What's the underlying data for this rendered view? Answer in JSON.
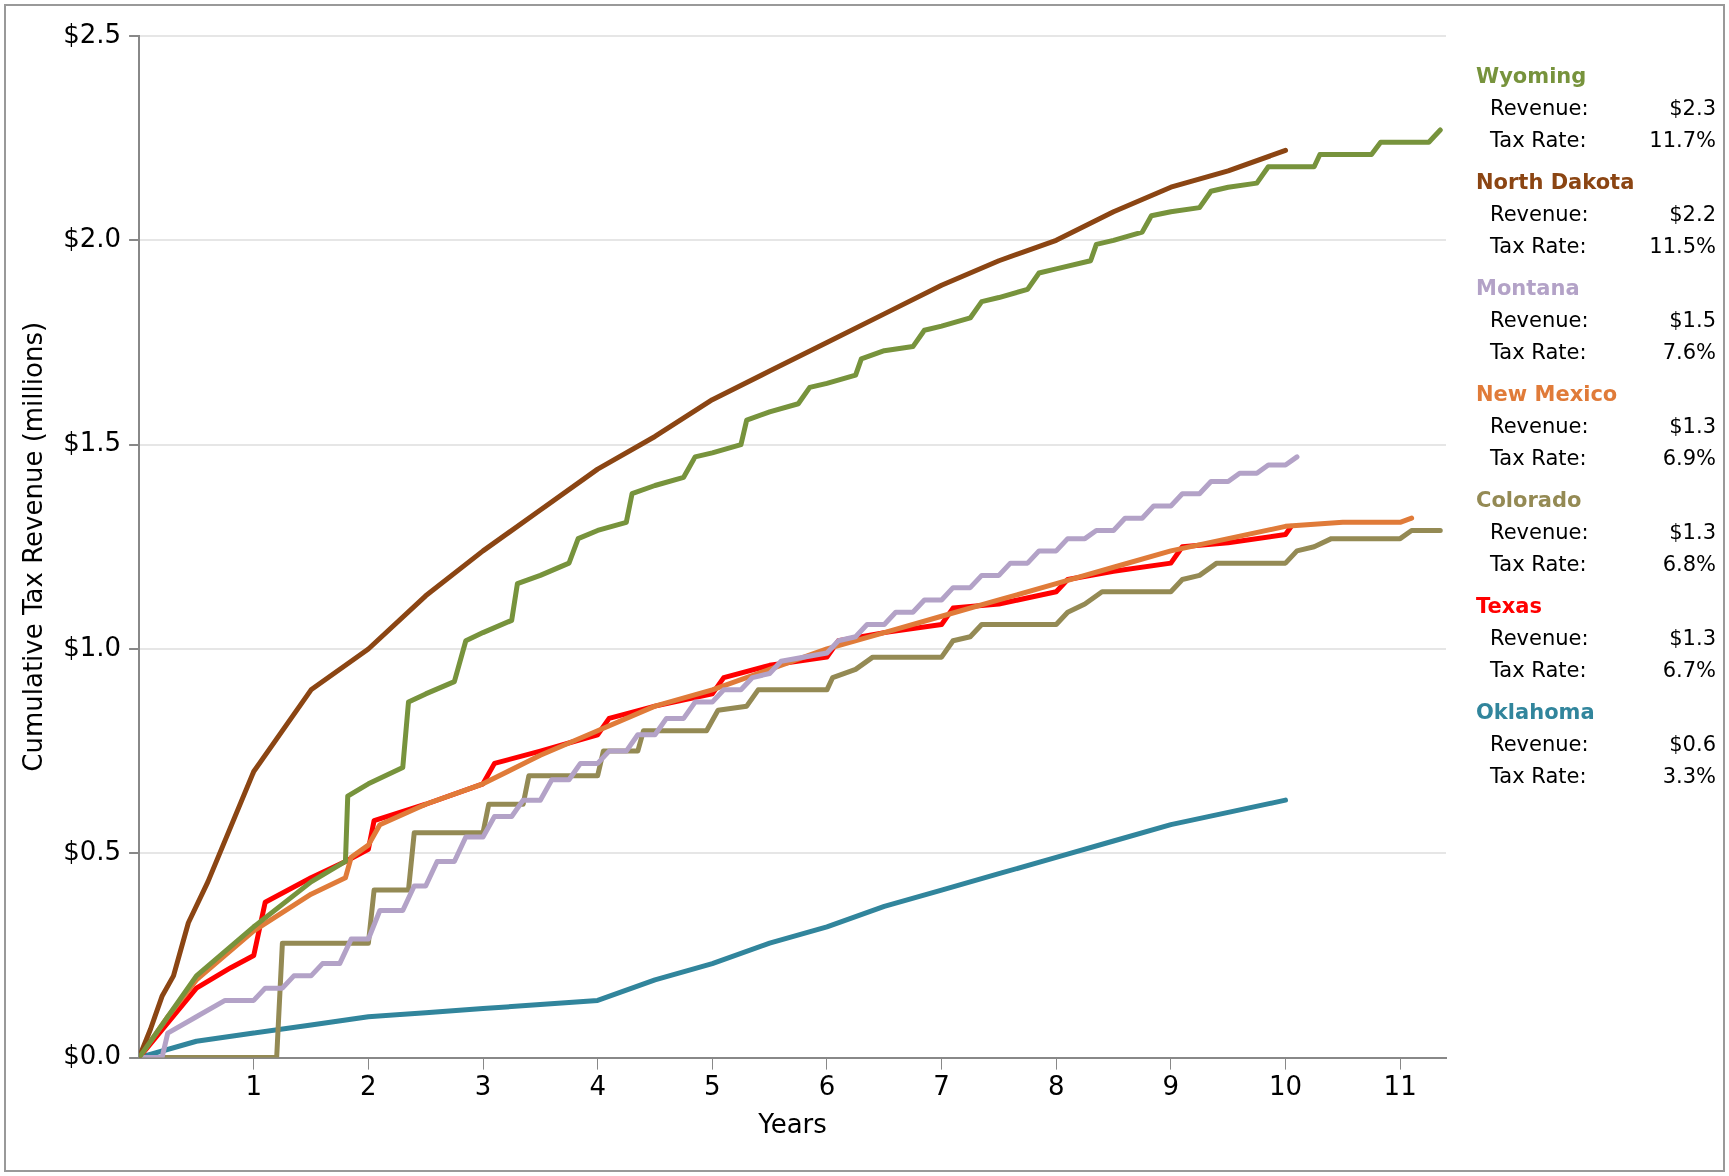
{
  "chart_data": {
    "type": "line",
    "xlabel": "Years",
    "ylabel": "Cumulative Tax Revenue (millions)",
    "xlim": [
      0,
      11.4
    ],
    "xticks": [
      1,
      2,
      3,
      4,
      5,
      6,
      7,
      8,
      9,
      10,
      11
    ],
    "ylim": [
      0,
      2.5
    ],
    "yticks": [
      {
        "value": 0,
        "label": "$0.0"
      },
      {
        "value": 0.5,
        "label": "$0.5"
      },
      {
        "value": 1,
        "label": "$1.0"
      },
      {
        "value": 1.5,
        "label": "$1.5"
      },
      {
        "value": 2,
        "label": "$2.0"
      },
      {
        "value": 2.5,
        "label": "$2.5"
      }
    ],
    "grid": "y",
    "legend": "right",
    "marker": "none",
    "line_style": "solid",
    "series": [
      {
        "name": "Wyoming",
        "color": "#77933c",
        "x": [
          0,
          0.5,
          1,
          1.5,
          1.8,
          1.82,
          2,
          2.3,
          2.35,
          2.5,
          2.75,
          2.85,
          3,
          3.25,
          3.3,
          3.5,
          3.75,
          3.83,
          4,
          4.25,
          4.3,
          4.5,
          4.75,
          4.85,
          5,
          5.25,
          5.3,
          5.5,
          5.75,
          5.85,
          6,
          6.25,
          6.3,
          6.5,
          6.75,
          6.85,
          7,
          7.25,
          7.35,
          7.5,
          7.75,
          7.85,
          8,
          8.3,
          8.35,
          8.5,
          8.75,
          8.83,
          9,
          9.25,
          9.35,
          9.5,
          9.75,
          9.85,
          10,
          10.25,
          10.3,
          10.75,
          10.83,
          11.25,
          11.35
        ],
        "values": [
          0,
          0.2,
          0.32,
          0.43,
          0.48,
          0.64,
          0.67,
          0.71,
          0.87,
          0.89,
          0.92,
          1.02,
          1.04,
          1.07,
          1.16,
          1.18,
          1.21,
          1.27,
          1.29,
          1.31,
          1.38,
          1.4,
          1.42,
          1.47,
          1.48,
          1.5,
          1.56,
          1.58,
          1.6,
          1.64,
          1.65,
          1.67,
          1.71,
          1.73,
          1.74,
          1.78,
          1.79,
          1.81,
          1.85,
          1.86,
          1.88,
          1.92,
          1.93,
          1.95,
          1.99,
          2.0,
          2.02,
          2.06,
          2.07,
          2.08,
          2.12,
          2.13,
          2.14,
          2.18,
          2.18,
          2.18,
          2.21,
          2.21,
          2.24,
          2.24,
          2.27
        ]
      },
      {
        "name": "North Dakota",
        "color": "#8b4513",
        "x": [
          0,
          0.1,
          0.2,
          0.3,
          0.43,
          0.6,
          1,
          1.5,
          2,
          2.5,
          3,
          3.5,
          4,
          4.5,
          5,
          5.5,
          6,
          6.5,
          7,
          7.5,
          8,
          8.5,
          9,
          9.5,
          10
        ],
        "values": [
          0,
          0.07,
          0.15,
          0.2,
          0.33,
          0.43,
          0.7,
          0.9,
          1.0,
          1.13,
          1.24,
          1.34,
          1.44,
          1.52,
          1.61,
          1.68,
          1.75,
          1.82,
          1.89,
          1.95,
          2.0,
          2.07,
          2.13,
          2.17,
          2.22
        ]
      },
      {
        "name": "Montana",
        "color": "#b3a2c7",
        "x": [
          0,
          0.2,
          0.25,
          0.5,
          0.75,
          1,
          1.1,
          1.25,
          1.35,
          1.5,
          1.6,
          1.75,
          1.85,
          2,
          2.1,
          2.3,
          2.4,
          2.5,
          2.6,
          2.75,
          2.85,
          3,
          3.1,
          3.25,
          3.35,
          3.5,
          3.6,
          3.75,
          3.85,
          4,
          4.1,
          4.25,
          4.35,
          4.5,
          4.6,
          4.75,
          4.85,
          5,
          5.1,
          5.25,
          5.35,
          5.5,
          5.6,
          6,
          6.1,
          6.25,
          6.35,
          6.5,
          6.6,
          6.75,
          6.85,
          7,
          7.1,
          7.25,
          7.35,
          7.5,
          7.6,
          7.75,
          7.85,
          8,
          8.1,
          8.25,
          8.35,
          8.5,
          8.6,
          8.75,
          8.85,
          9,
          9.1,
          9.25,
          9.35,
          9.5,
          9.6,
          9.75,
          9.85,
          10,
          10.1
        ],
        "values": [
          0,
          0,
          0.06,
          0.1,
          0.14,
          0.14,
          0.17,
          0.17,
          0.2,
          0.2,
          0.23,
          0.23,
          0.29,
          0.29,
          0.36,
          0.36,
          0.42,
          0.42,
          0.48,
          0.48,
          0.54,
          0.54,
          0.59,
          0.59,
          0.63,
          0.63,
          0.68,
          0.68,
          0.72,
          0.72,
          0.75,
          0.75,
          0.79,
          0.79,
          0.83,
          0.83,
          0.87,
          0.87,
          0.9,
          0.9,
          0.93,
          0.94,
          0.97,
          0.99,
          1.02,
          1.03,
          1.06,
          1.06,
          1.09,
          1.09,
          1.12,
          1.12,
          1.15,
          1.15,
          1.18,
          1.18,
          1.21,
          1.21,
          1.24,
          1.24,
          1.27,
          1.27,
          1.29,
          1.29,
          1.32,
          1.32,
          1.35,
          1.35,
          1.38,
          1.38,
          1.41,
          1.41,
          1.43,
          1.43,
          1.45,
          1.45,
          1.47
        ]
      },
      {
        "name": "New Mexico",
        "color": "#e07b39",
        "x": [
          0,
          0.25,
          0.5,
          1,
          1.5,
          1.8,
          1.85,
          2,
          2.1,
          2.5,
          3,
          3.5,
          4,
          4.5,
          5,
          5.5,
          6,
          6.5,
          7,
          7.5,
          8,
          8.5,
          9,
          9.5,
          10,
          10.5,
          11,
          11.1
        ],
        "values": [
          0,
          0.1,
          0.19,
          0.31,
          0.4,
          0.44,
          0.49,
          0.52,
          0.57,
          0.62,
          0.67,
          0.74,
          0.8,
          0.86,
          0.9,
          0.95,
          1.0,
          1.04,
          1.08,
          1.12,
          1.16,
          1.2,
          1.24,
          1.27,
          1.3,
          1.31,
          1.31,
          1.32
        ]
      },
      {
        "name": "Colorado",
        "color": "#948a54",
        "x": [
          0,
          1.2,
          1.25,
          2,
          2.05,
          2.35,
          2.4,
          3,
          3.05,
          3.35,
          3.4,
          4,
          4.05,
          4.35,
          4.4,
          4.95,
          5.05,
          5.3,
          5.4,
          6,
          6.05,
          6.25,
          6.4,
          7,
          7.1,
          7.25,
          7.35,
          8,
          8.1,
          8.25,
          8.4,
          9,
          9.1,
          9.25,
          9.4,
          10,
          10.1,
          10.25,
          10.4,
          11,
          11.1,
          11.35
        ],
        "values": [
          0,
          0,
          0.28,
          0.28,
          0.41,
          0.41,
          0.55,
          0.55,
          0.62,
          0.62,
          0.69,
          0.69,
          0.75,
          0.75,
          0.8,
          0.8,
          0.85,
          0.86,
          0.9,
          0.9,
          0.93,
          0.95,
          0.98,
          0.98,
          1.02,
          1.03,
          1.06,
          1.06,
          1.09,
          1.11,
          1.14,
          1.14,
          1.17,
          1.18,
          1.21,
          1.21,
          1.24,
          1.25,
          1.27,
          1.27,
          1.29,
          1.29
        ]
      },
      {
        "name": "Texas",
        "color": "#ff0000",
        "x": [
          0,
          0.5,
          0.8,
          1,
          1.1,
          1.5,
          1.8,
          2,
          2.05,
          2.5,
          3,
          3.1,
          3.5,
          4,
          4.1,
          4.5,
          5,
          5.1,
          5.5,
          6,
          6.1,
          6.5,
          7,
          7.1,
          7.5,
          8,
          8.1,
          8.5,
          9,
          9.1,
          9.5,
          10,
          10.05
        ],
        "values": [
          0,
          0.17,
          0.22,
          0.25,
          0.38,
          0.44,
          0.48,
          0.51,
          0.58,
          0.62,
          0.67,
          0.72,
          0.75,
          0.79,
          0.83,
          0.86,
          0.89,
          0.93,
          0.96,
          0.98,
          1.02,
          1.04,
          1.06,
          1.1,
          1.11,
          1.14,
          1.17,
          1.19,
          1.21,
          1.25,
          1.26,
          1.28,
          1.3
        ]
      },
      {
        "name": "Oklahoma",
        "color": "#31859c",
        "x": [
          0,
          0.5,
          1,
          1.5,
          2,
          2.5,
          3,
          3.5,
          4,
          4.5,
          5,
          5.5,
          6,
          6.5,
          7,
          7.5,
          8,
          8.5,
          9,
          9.5,
          10
        ],
        "values": [
          0,
          0.04,
          0.06,
          0.08,
          0.1,
          0.11,
          0.12,
          0.13,
          0.14,
          0.19,
          0.23,
          0.28,
          0.32,
          0.37,
          0.41,
          0.45,
          0.49,
          0.53,
          0.57,
          0.6,
          0.63
        ]
      }
    ],
    "annotations": [
      "Revenue: $2.3",
      "Tax Rate: 11.7%",
      "Revenue: $2.2",
      "Tax Rate: 11.5%",
      "Revenue: $1.5",
      "Tax Rate: 7.6%",
      "Revenue: $1.3",
      "Tax Rate: 6.9%",
      "Revenue: $1.3",
      "Tax Rate: 6.8%",
      "Revenue: $1.3",
      "Tax Rate: 6.7%",
      "Revenue: $0.6",
      "Tax Rate: 3.3%"
    ]
  }
}
